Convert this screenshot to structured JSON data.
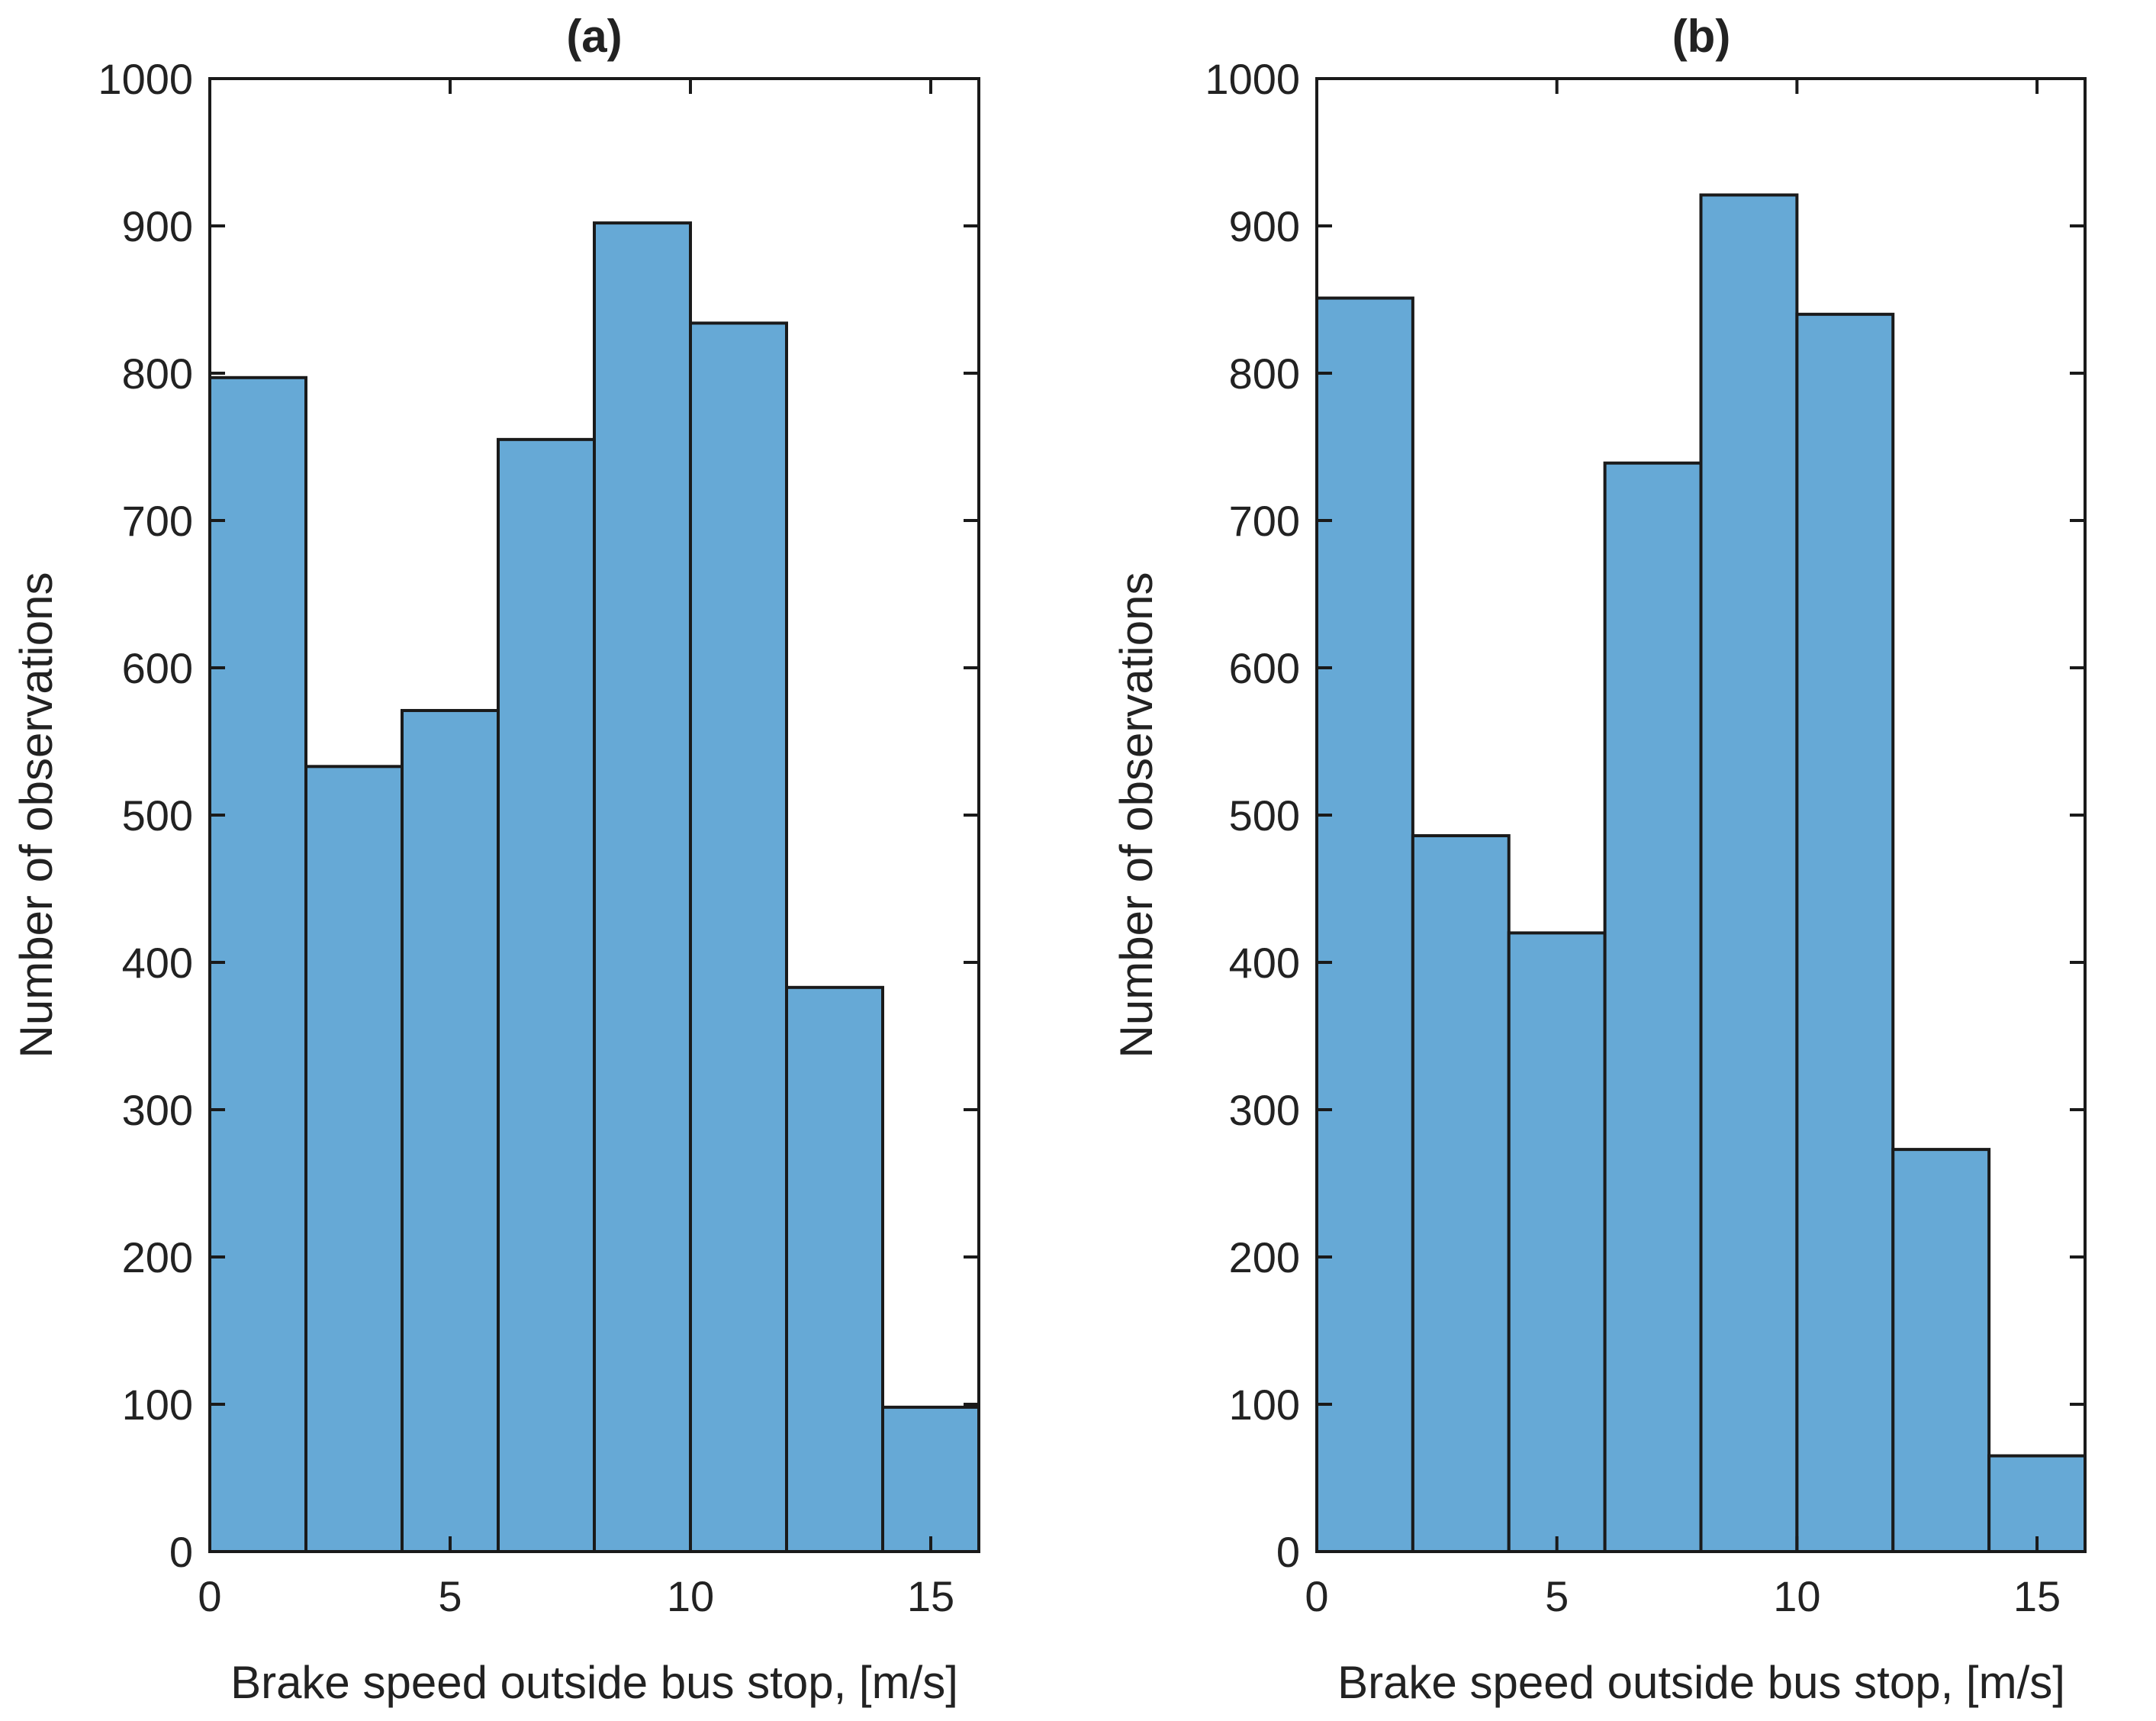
{
  "chart_data": [
    {
      "type": "bar",
      "title": "(a)",
      "xlabel": "Brake speed outside bus stop, [m/s]",
      "ylabel": "Number of observations",
      "bin_edges": [
        0,
        2,
        4,
        6,
        8,
        10,
        12,
        14,
        16
      ],
      "values": [
        797,
        533,
        571,
        755,
        902,
        834,
        383,
        98
      ],
      "xlim": [
        0,
        16
      ],
      "ylim": [
        0,
        1000
      ],
      "xticks": [
        0,
        5,
        10,
        15
      ],
      "yticks": [
        0,
        100,
        200,
        300,
        400,
        500,
        600,
        700,
        800,
        900,
        1000
      ],
      "bar_color": "#66a9d6",
      "edge_color": "#1a1a1a",
      "grid": false
    },
    {
      "type": "bar",
      "title": "(b)",
      "xlabel": "Brake speed outside bus stop, [m/s]",
      "ylabel": "Number of observations",
      "bin_edges": [
        0,
        2,
        4,
        6,
        8,
        10,
        12,
        14,
        16
      ],
      "values": [
        851,
        486,
        420,
        739,
        921,
        840,
        273,
        65
      ],
      "xlim": [
        0,
        16
      ],
      "ylim": [
        0,
        1000
      ],
      "xticks": [
        0,
        5,
        10,
        15
      ],
      "yticks": [
        0,
        100,
        200,
        300,
        400,
        500,
        600,
        700,
        800,
        900,
        1000
      ],
      "bar_color": "#66a9d6",
      "edge_color": "#1a1a1a",
      "grid": false
    }
  ]
}
